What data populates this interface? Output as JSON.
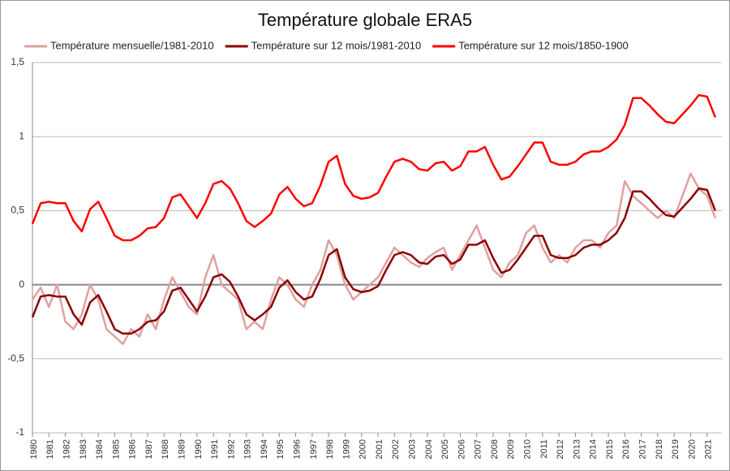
{
  "chart_data": {
    "type": "line",
    "title": "Température globale ERA5",
    "x": [
      1980,
      1980.5,
      1981,
      1981.5,
      1982,
      1982.5,
      1983,
      1983.5,
      1984,
      1984.5,
      1985,
      1985.5,
      1986,
      1986.5,
      1987,
      1987.5,
      1988,
      1988.5,
      1989,
      1989.5,
      1990,
      1990.5,
      1991,
      1991.5,
      1992,
      1992.5,
      1993,
      1993.5,
      1994,
      1994.5,
      1995,
      1995.5,
      1996,
      1996.5,
      1997,
      1997.5,
      1998,
      1998.5,
      1999,
      1999.5,
      2000,
      2000.5,
      2001,
      2001.5,
      2002,
      2002.5,
      2003,
      2003.5,
      2004,
      2004.5,
      2005,
      2005.5,
      2006,
      2006.5,
      2007,
      2007.5,
      2008,
      2008.5,
      2009,
      2009.5,
      2010,
      2010.5,
      2011,
      2011.5,
      2012,
      2012.5,
      2013,
      2013.5,
      2014,
      2014.5,
      2015,
      2015.5,
      2016,
      2016.5,
      2017,
      2017.5,
      2018,
      2018.5,
      2019,
      2019.5,
      2020,
      2020.5,
      2021,
      2021.5
    ],
    "series": [
      {
        "name": "Température mensuelle/1981-2010",
        "color": "#e0a0a0",
        "width": 2.5,
        "values": [
          -0.1,
          -0.02,
          -0.15,
          0.0,
          -0.25,
          -0.3,
          -0.2,
          0.0,
          -0.1,
          -0.3,
          -0.35,
          -0.4,
          -0.3,
          -0.35,
          -0.2,
          -0.3,
          -0.1,
          0.05,
          -0.05,
          -0.15,
          -0.2,
          0.05,
          0.2,
          0.0,
          -0.05,
          -0.1,
          -0.3,
          -0.25,
          -0.3,
          -0.1,
          0.05,
          0.0,
          -0.1,
          -0.15,
          0.0,
          0.1,
          0.3,
          0.2,
          0.0,
          -0.1,
          -0.05,
          0.0,
          0.05,
          0.15,
          0.25,
          0.2,
          0.15,
          0.12,
          0.18,
          0.22,
          0.25,
          0.1,
          0.2,
          0.3,
          0.4,
          0.25,
          0.1,
          0.05,
          0.15,
          0.2,
          0.35,
          0.4,
          0.25,
          0.15,
          0.2,
          0.15,
          0.25,
          0.3,
          0.3,
          0.25,
          0.35,
          0.4,
          0.7,
          0.6,
          0.55,
          0.5,
          0.45,
          0.5,
          0.45,
          0.6,
          0.75,
          0.65,
          0.6,
          0.45
        ]
      },
      {
        "name": "Température sur 12 mois/1981-2010",
        "color": "#8b0000",
        "width": 2.5,
        "values": [
          -0.22,
          -0.08,
          -0.07,
          -0.08,
          -0.08,
          -0.2,
          -0.27,
          -0.12,
          -0.07,
          -0.18,
          -0.3,
          -0.33,
          -0.33,
          -0.3,
          -0.25,
          -0.24,
          -0.18,
          -0.04,
          -0.02,
          -0.1,
          -0.18,
          -0.08,
          0.05,
          0.07,
          0.02,
          -0.08,
          -0.2,
          -0.24,
          -0.2,
          -0.15,
          -0.02,
          0.03,
          -0.05,
          -0.1,
          -0.08,
          0.04,
          0.2,
          0.24,
          0.05,
          -0.03,
          -0.05,
          -0.04,
          -0.01,
          0.1,
          0.2,
          0.22,
          0.2,
          0.15,
          0.14,
          0.19,
          0.2,
          0.14,
          0.17,
          0.27,
          0.27,
          0.3,
          0.18,
          0.08,
          0.1,
          0.17,
          0.25,
          0.33,
          0.33,
          0.2,
          0.18,
          0.18,
          0.2,
          0.25,
          0.27,
          0.27,
          0.3,
          0.35,
          0.45,
          0.63,
          0.63,
          0.58,
          0.52,
          0.47,
          0.46,
          0.52,
          0.58,
          0.65,
          0.64,
          0.5
        ]
      },
      {
        "name": "Température sur 12 mois/1850-1900",
        "color": "#ff0000",
        "width": 2.5,
        "values": [
          0.41,
          0.55,
          0.56,
          0.55,
          0.55,
          0.43,
          0.36,
          0.51,
          0.56,
          0.45,
          0.33,
          0.3,
          0.3,
          0.33,
          0.38,
          0.39,
          0.45,
          0.59,
          0.61,
          0.53,
          0.45,
          0.55,
          0.68,
          0.7,
          0.65,
          0.55,
          0.43,
          0.39,
          0.43,
          0.48,
          0.61,
          0.66,
          0.58,
          0.53,
          0.55,
          0.67,
          0.83,
          0.87,
          0.68,
          0.6,
          0.58,
          0.59,
          0.62,
          0.73,
          0.83,
          0.85,
          0.83,
          0.78,
          0.77,
          0.82,
          0.83,
          0.77,
          0.8,
          0.9,
          0.9,
          0.93,
          0.81,
          0.71,
          0.73,
          0.8,
          0.88,
          0.96,
          0.96,
          0.83,
          0.81,
          0.81,
          0.83,
          0.88,
          0.9,
          0.9,
          0.93,
          0.98,
          1.08,
          1.26,
          1.26,
          1.21,
          1.15,
          1.1,
          1.09,
          1.15,
          1.21,
          1.28,
          1.27,
          1.13
        ]
      }
    ],
    "xlim": [
      1980,
      2021.9
    ],
    "xticks": [
      1980,
      1981,
      1982,
      1983,
      1984,
      1985,
      1986,
      1987,
      1988,
      1989,
      1990,
      1991,
      1992,
      1993,
      1994,
      1995,
      1996,
      1997,
      1998,
      1999,
      2000,
      2001,
      2002,
      2003,
      2004,
      2005,
      2006,
      2007,
      2008,
      2009,
      2010,
      2011,
      2012,
      2013,
      2014,
      2015,
      2016,
      2017,
      2018,
      2019,
      2020,
      2021
    ],
    "ylim": [
      -1,
      1.5
    ],
    "yticks": [
      {
        "value": -1,
        "label": "-1"
      },
      {
        "value": -0.5,
        "label": "-0,5"
      },
      0,
      {
        "value": 0.5,
        "label": "0,5"
      },
      1,
      {
        "value": 1.5,
        "label": "1,5"
      }
    ],
    "grid": true,
    "legend": "top"
  }
}
